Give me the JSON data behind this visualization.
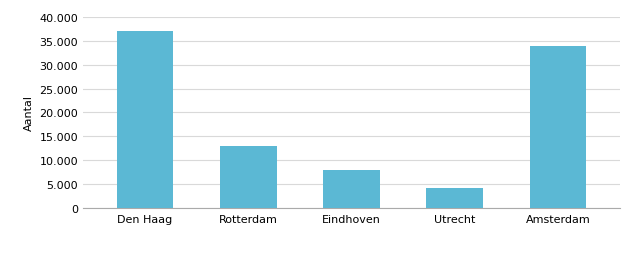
{
  "categories": [
    "Den Haag",
    "Rotterdam",
    "Eindhoven",
    "Utrecht",
    "Amsterdam"
  ],
  "values": [
    37000,
    13000,
    8000,
    4200,
    34000
  ],
  "bar_color": "#5BB8D4",
  "ylabel": "Aantal",
  "ylim": [
    0,
    40000
  ],
  "yticks": [
    0,
    5000,
    10000,
    15000,
    20000,
    25000,
    30000,
    35000,
    40000
  ],
  "ytick_labels": [
    "0",
    "5.000",
    "10.000",
    "15.000",
    "20.000",
    "25.000",
    "30.000",
    "35.000",
    "40.000"
  ],
  "background_color": "#ffffff",
  "axes_bg_color": "#ffffff",
  "grid_color": "#d9d9d9",
  "bar_width": 0.55,
  "ylabel_fontsize": 8,
  "tick_fontsize": 8
}
